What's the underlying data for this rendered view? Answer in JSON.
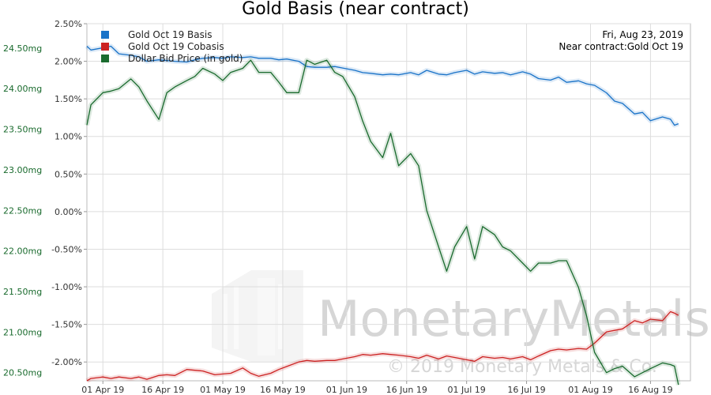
{
  "chart_data": {
    "type": "line",
    "title": "Gold Basis (near contract)",
    "info": {
      "date": "Fri, Aug 23, 2019",
      "contract": "Near contract:Gold Oct 19"
    },
    "watermark": {
      "brand": "MonetaryMetals",
      "copyright": "© 2019 Monetary Metals & Co."
    },
    "x_ticks": [
      "01 Apr 19",
      "16 Apr 19",
      "01 May 19",
      "16 May 19",
      "01 Jun 19",
      "16 Jun 19",
      "01 Jul 19",
      "16 Jul 19",
      "01 Aug 19",
      "16 Aug 19"
    ],
    "x_range": [
      "2019-03-28",
      "2019-08-26"
    ],
    "y_left": {
      "ticks": [
        "2.50%",
        "2.00%",
        "1.50%",
        "1.00%",
        "0.50%",
        "0.00%",
        "-0.50%",
        "-1.00%",
        "-1.50%",
        "-2.00%"
      ],
      "range": [
        -2.25,
        2.5
      ],
      "unit": "%"
    },
    "y_right": {
      "ticks": [
        "24.50mg",
        "24.00mg",
        "23.50mg",
        "23.00mg",
        "22.50mg",
        "22.00mg",
        "21.50mg",
        "21.00mg",
        "20.50mg"
      ],
      "range": [
        20.4,
        24.8
      ],
      "unit": "mg"
    },
    "grid": true,
    "legend_position": "top-left",
    "series": [
      {
        "name": "Gold Oct 19 Basis",
        "color": "#1a73c8",
        "axis": "left",
        "points": [
          [
            "2019-03-28",
            2.2
          ],
          [
            "2019-03-29",
            2.15
          ],
          [
            "2019-04-01",
            2.18
          ],
          [
            "2019-04-03",
            2.2
          ],
          [
            "2019-04-05",
            2.1
          ],
          [
            "2019-04-08",
            2.08
          ],
          [
            "2019-04-10",
            2.06
          ],
          [
            "2019-04-12",
            2.0
          ],
          [
            "2019-04-15",
            2.02
          ],
          [
            "2019-04-17",
            2.01
          ],
          [
            "2019-04-19",
            2.0
          ],
          [
            "2019-04-22",
            1.99
          ],
          [
            "2019-04-24",
            2.02
          ],
          [
            "2019-04-26",
            2.04
          ],
          [
            "2019-04-29",
            2.05
          ],
          [
            "2019-05-01",
            2.04
          ],
          [
            "2019-05-03",
            2.06
          ],
          [
            "2019-05-06",
            2.05
          ],
          [
            "2019-05-08",
            2.06
          ],
          [
            "2019-05-10",
            2.04
          ],
          [
            "2019-05-13",
            2.04
          ],
          [
            "2019-05-15",
            2.02
          ],
          [
            "2019-05-17",
            2.03
          ],
          [
            "2019-05-20",
            2.0
          ],
          [
            "2019-05-22",
            1.93
          ],
          [
            "2019-05-24",
            1.92
          ],
          [
            "2019-05-27",
            1.92
          ],
          [
            "2019-05-29",
            1.93
          ],
          [
            "2019-05-31",
            1.91
          ],
          [
            "2019-06-03",
            1.88
          ],
          [
            "2019-06-05",
            1.85
          ],
          [
            "2019-06-07",
            1.84
          ],
          [
            "2019-06-10",
            1.82
          ],
          [
            "2019-06-12",
            1.83
          ],
          [
            "2019-06-14",
            1.82
          ],
          [
            "2019-06-17",
            1.85
          ],
          [
            "2019-06-19",
            1.82
          ],
          [
            "2019-06-21",
            1.88
          ],
          [
            "2019-06-24",
            1.83
          ],
          [
            "2019-06-26",
            1.82
          ],
          [
            "2019-06-28",
            1.85
          ],
          [
            "2019-07-01",
            1.88
          ],
          [
            "2019-07-03",
            1.83
          ],
          [
            "2019-07-05",
            1.86
          ],
          [
            "2019-07-08",
            1.84
          ],
          [
            "2019-07-10",
            1.85
          ],
          [
            "2019-07-12",
            1.82
          ],
          [
            "2019-07-15",
            1.86
          ],
          [
            "2019-07-17",
            1.83
          ],
          [
            "2019-07-19",
            1.77
          ],
          [
            "2019-07-22",
            1.75
          ],
          [
            "2019-07-24",
            1.79
          ],
          [
            "2019-07-26",
            1.72
          ],
          [
            "2019-07-29",
            1.74
          ],
          [
            "2019-07-31",
            1.7
          ],
          [
            "2019-08-02",
            1.68
          ],
          [
            "2019-08-05",
            1.58
          ],
          [
            "2019-08-07",
            1.47
          ],
          [
            "2019-08-09",
            1.44
          ],
          [
            "2019-08-12",
            1.3
          ],
          [
            "2019-08-14",
            1.32
          ],
          [
            "2019-08-16",
            1.21
          ],
          [
            "2019-08-19",
            1.26
          ],
          [
            "2019-08-21",
            1.23
          ],
          [
            "2019-08-22",
            1.15
          ],
          [
            "2019-08-23",
            1.17
          ]
        ]
      },
      {
        "name": "Gold Oct 19 Cobasis",
        "color": "#cc2222",
        "axis": "left",
        "points": [
          [
            "2019-03-28",
            -2.25
          ],
          [
            "2019-03-29",
            -2.22
          ],
          [
            "2019-04-01",
            -2.2
          ],
          [
            "2019-04-03",
            -2.22
          ],
          [
            "2019-04-05",
            -2.2
          ],
          [
            "2019-04-08",
            -2.22
          ],
          [
            "2019-04-10",
            -2.2
          ],
          [
            "2019-04-12",
            -2.23
          ],
          [
            "2019-04-15",
            -2.18
          ],
          [
            "2019-04-17",
            -2.17
          ],
          [
            "2019-04-19",
            -2.18
          ],
          [
            "2019-04-22",
            -2.1
          ],
          [
            "2019-04-24",
            -2.11
          ],
          [
            "2019-04-26",
            -2.12
          ],
          [
            "2019-04-29",
            -2.17
          ],
          [
            "2019-05-01",
            -2.16
          ],
          [
            "2019-05-03",
            -2.15
          ],
          [
            "2019-05-06",
            -2.08
          ],
          [
            "2019-05-08",
            -2.15
          ],
          [
            "2019-05-10",
            -2.19
          ],
          [
            "2019-05-13",
            -2.15
          ],
          [
            "2019-05-15",
            -2.1
          ],
          [
            "2019-05-17",
            -2.06
          ],
          [
            "2019-05-20",
            -2.0
          ],
          [
            "2019-05-22",
            -1.98
          ],
          [
            "2019-05-24",
            -1.99
          ],
          [
            "2019-05-27",
            -1.98
          ],
          [
            "2019-05-29",
            -1.98
          ],
          [
            "2019-05-31",
            -1.96
          ],
          [
            "2019-06-03",
            -1.93
          ],
          [
            "2019-06-05",
            -1.9
          ],
          [
            "2019-06-07",
            -1.91
          ],
          [
            "2019-06-10",
            -1.89
          ],
          [
            "2019-06-12",
            -1.9
          ],
          [
            "2019-06-14",
            -1.91
          ],
          [
            "2019-06-17",
            -1.93
          ],
          [
            "2019-06-19",
            -1.95
          ],
          [
            "2019-06-21",
            -1.91
          ],
          [
            "2019-06-24",
            -1.96
          ],
          [
            "2019-06-26",
            -1.92
          ],
          [
            "2019-06-28",
            -1.94
          ],
          [
            "2019-07-01",
            -1.97
          ],
          [
            "2019-07-03",
            -1.99
          ],
          [
            "2019-07-05",
            -1.93
          ],
          [
            "2019-07-08",
            -1.95
          ],
          [
            "2019-07-10",
            -1.94
          ],
          [
            "2019-07-12",
            -1.96
          ],
          [
            "2019-07-15",
            -1.93
          ],
          [
            "2019-07-17",
            -1.97
          ],
          [
            "2019-07-19",
            -1.92
          ],
          [
            "2019-07-22",
            -1.85
          ],
          [
            "2019-07-24",
            -1.83
          ],
          [
            "2019-07-26",
            -1.84
          ],
          [
            "2019-07-29",
            -1.82
          ],
          [
            "2019-07-31",
            -1.83
          ],
          [
            "2019-08-02",
            -1.75
          ],
          [
            "2019-08-05",
            -1.6
          ],
          [
            "2019-08-07",
            -1.58
          ],
          [
            "2019-08-09",
            -1.56
          ],
          [
            "2019-08-12",
            -1.45
          ],
          [
            "2019-08-14",
            -1.48
          ],
          [
            "2019-08-16",
            -1.43
          ],
          [
            "2019-08-19",
            -1.45
          ],
          [
            "2019-08-21",
            -1.33
          ],
          [
            "2019-08-22",
            -1.35
          ],
          [
            "2019-08-23",
            -1.38
          ]
        ]
      },
      {
        "name": "Dollar Bid Price (in gold)",
        "color": "#1a6b2e",
        "axis": "right",
        "points": [
          [
            "2019-03-28",
            23.55
          ],
          [
            "2019-03-29",
            23.8
          ],
          [
            "2019-04-01",
            23.95
          ],
          [
            "2019-04-03",
            23.97
          ],
          [
            "2019-04-05",
            24.0
          ],
          [
            "2019-04-08",
            24.12
          ],
          [
            "2019-04-10",
            24.02
          ],
          [
            "2019-04-12",
            23.85
          ],
          [
            "2019-04-15",
            23.62
          ],
          [
            "2019-04-17",
            23.95
          ],
          [
            "2019-04-19",
            24.02
          ],
          [
            "2019-04-22",
            24.1
          ],
          [
            "2019-04-24",
            24.15
          ],
          [
            "2019-04-26",
            24.25
          ],
          [
            "2019-04-29",
            24.18
          ],
          [
            "2019-05-01",
            24.1
          ],
          [
            "2019-05-03",
            24.2
          ],
          [
            "2019-05-06",
            24.25
          ],
          [
            "2019-05-08",
            24.35
          ],
          [
            "2019-05-10",
            24.2
          ],
          [
            "2019-05-13",
            24.2
          ],
          [
            "2019-05-15",
            24.08
          ],
          [
            "2019-05-17",
            23.95
          ],
          [
            "2019-05-20",
            23.95
          ],
          [
            "2019-05-22",
            24.35
          ],
          [
            "2019-05-24",
            24.3
          ],
          [
            "2019-05-27",
            24.35
          ],
          [
            "2019-05-29",
            24.2
          ],
          [
            "2019-05-31",
            24.15
          ],
          [
            "2019-06-03",
            23.9
          ],
          [
            "2019-06-05",
            23.6
          ],
          [
            "2019-06-07",
            23.35
          ],
          [
            "2019-06-10",
            23.15
          ],
          [
            "2019-06-12",
            23.45
          ],
          [
            "2019-06-14",
            23.05
          ],
          [
            "2019-06-17",
            23.2
          ],
          [
            "2019-06-19",
            23.05
          ],
          [
            "2019-06-21",
            22.5
          ],
          [
            "2019-06-24",
            22.05
          ],
          [
            "2019-06-26",
            21.75
          ],
          [
            "2019-06-28",
            22.05
          ],
          [
            "2019-07-01",
            22.3
          ],
          [
            "2019-07-03",
            21.9
          ],
          [
            "2019-07-05",
            22.3
          ],
          [
            "2019-07-08",
            22.2
          ],
          [
            "2019-07-10",
            22.05
          ],
          [
            "2019-07-12",
            22.0
          ],
          [
            "2019-07-15",
            21.85
          ],
          [
            "2019-07-17",
            21.75
          ],
          [
            "2019-07-19",
            21.85
          ],
          [
            "2019-07-22",
            21.85
          ],
          [
            "2019-07-24",
            21.88
          ],
          [
            "2019-07-26",
            21.88
          ],
          [
            "2019-07-29",
            21.55
          ],
          [
            "2019-07-31",
            21.2
          ],
          [
            "2019-08-02",
            20.75
          ],
          [
            "2019-08-05",
            20.5
          ],
          [
            "2019-08-07",
            20.55
          ],
          [
            "2019-08-09",
            20.58
          ],
          [
            "2019-08-12",
            20.45
          ],
          [
            "2019-08-14",
            20.5
          ],
          [
            "2019-08-16",
            20.55
          ],
          [
            "2019-08-19",
            20.62
          ],
          [
            "2019-08-21",
            20.6
          ],
          [
            "2019-08-22",
            20.58
          ],
          [
            "2019-08-23",
            20.35
          ]
        ]
      }
    ]
  }
}
